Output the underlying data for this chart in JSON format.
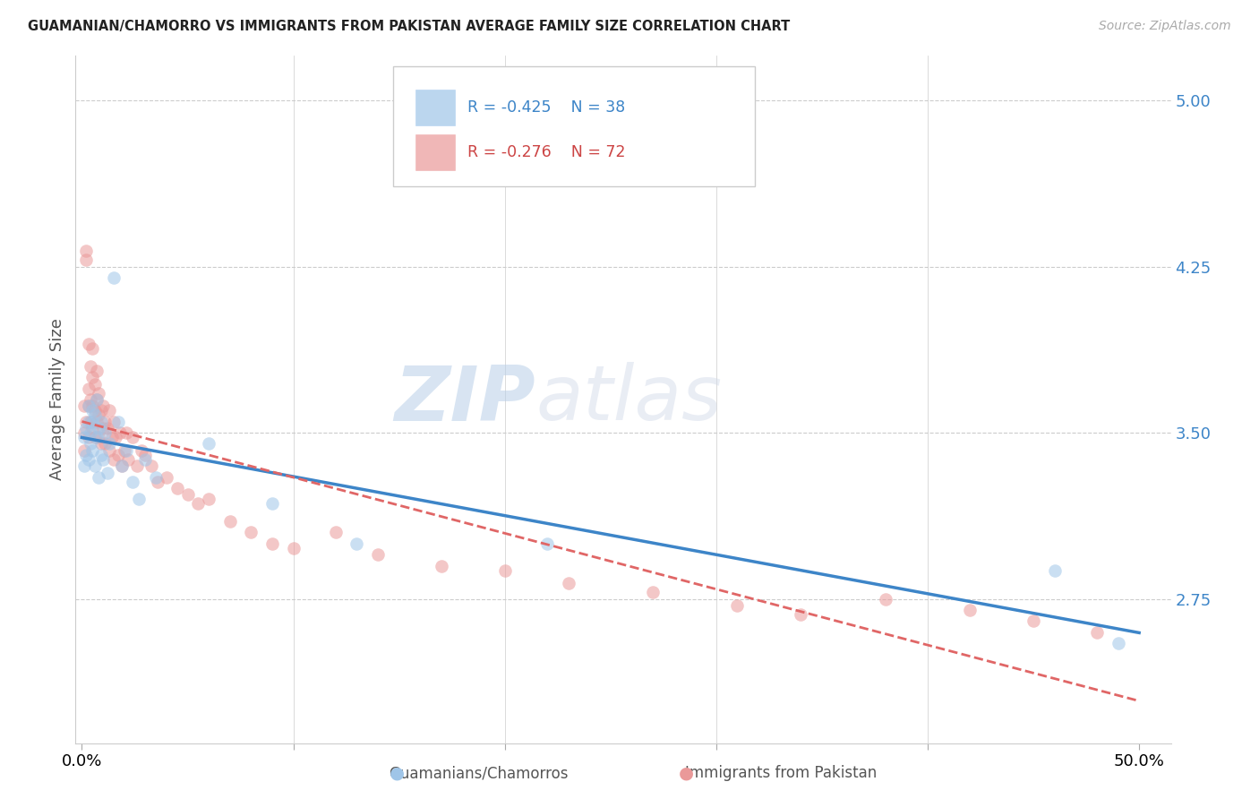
{
  "title": "GUAMANIAN/CHAMORRO VS IMMIGRANTS FROM PAKISTAN AVERAGE FAMILY SIZE CORRELATION CHART",
  "source": "Source: ZipAtlas.com",
  "ylabel": "Average Family Size",
  "yticks": [
    2.75,
    3.5,
    4.25,
    5.0
  ],
  "ymin": 2.1,
  "ymax": 5.2,
  "xmin": -0.003,
  "xmax": 0.515,
  "blue_R": -0.425,
  "blue_N": 38,
  "pink_R": -0.276,
  "pink_N": 72,
  "legend_label_blue": "Guamanians/Chamorros",
  "legend_label_pink": "Immigrants from Pakistan",
  "blue_color": "#9fc5e8",
  "pink_color": "#ea9999",
  "blue_line_color": "#3d85c8",
  "pink_line_color": "#e06666",
  "watermark_zip": "ZIP",
  "watermark_atlas": "atlas",
  "blue_x": [
    0.001,
    0.001,
    0.002,
    0.002,
    0.003,
    0.003,
    0.003,
    0.004,
    0.004,
    0.005,
    0.005,
    0.005,
    0.006,
    0.006,
    0.007,
    0.007,
    0.008,
    0.008,
    0.009,
    0.009,
    0.01,
    0.011,
    0.012,
    0.013,
    0.015,
    0.017,
    0.019,
    0.021,
    0.024,
    0.027,
    0.03,
    0.035,
    0.06,
    0.09,
    0.13,
    0.22,
    0.46,
    0.49
  ],
  "blue_y": [
    3.48,
    3.35,
    3.52,
    3.4,
    3.55,
    3.38,
    3.62,
    3.5,
    3.45,
    3.6,
    3.55,
    3.42,
    3.58,
    3.35,
    3.65,
    3.48,
    3.52,
    3.3,
    3.55,
    3.4,
    3.38,
    3.5,
    3.32,
    3.45,
    4.2,
    3.55,
    3.35,
    3.42,
    3.28,
    3.2,
    3.38,
    3.3,
    3.45,
    3.18,
    3.0,
    3.0,
    2.88,
    2.55
  ],
  "pink_x": [
    0.001,
    0.001,
    0.001,
    0.002,
    0.002,
    0.002,
    0.003,
    0.003,
    0.003,
    0.003,
    0.004,
    0.004,
    0.004,
    0.005,
    0.005,
    0.005,
    0.005,
    0.006,
    0.006,
    0.006,
    0.007,
    0.007,
    0.007,
    0.008,
    0.008,
    0.008,
    0.009,
    0.009,
    0.01,
    0.01,
    0.011,
    0.011,
    0.012,
    0.013,
    0.013,
    0.014,
    0.015,
    0.015,
    0.016,
    0.017,
    0.018,
    0.019,
    0.02,
    0.021,
    0.022,
    0.024,
    0.026,
    0.028,
    0.03,
    0.033,
    0.036,
    0.04,
    0.045,
    0.05,
    0.055,
    0.06,
    0.07,
    0.08,
    0.09,
    0.1,
    0.12,
    0.14,
    0.17,
    0.2,
    0.23,
    0.27,
    0.31,
    0.34,
    0.38,
    0.42,
    0.45,
    0.48
  ],
  "pink_y": [
    3.5,
    3.62,
    3.42,
    4.32,
    4.28,
    3.55,
    3.9,
    3.7,
    3.62,
    3.48,
    3.8,
    3.65,
    3.55,
    3.88,
    3.75,
    3.62,
    3.52,
    3.72,
    3.6,
    3.48,
    3.78,
    3.65,
    3.55,
    3.68,
    3.58,
    3.48,
    3.6,
    3.45,
    3.62,
    3.52,
    3.55,
    3.45,
    3.52,
    3.6,
    3.42,
    3.48,
    3.55,
    3.38,
    3.48,
    3.4,
    3.5,
    3.35,
    3.42,
    3.5,
    3.38,
    3.48,
    3.35,
    3.42,
    3.4,
    3.35,
    3.28,
    3.3,
    3.25,
    3.22,
    3.18,
    3.2,
    3.1,
    3.05,
    3.0,
    2.98,
    3.05,
    2.95,
    2.9,
    2.88,
    2.82,
    2.78,
    2.72,
    2.68,
    2.75,
    2.7,
    2.65,
    2.6
  ]
}
